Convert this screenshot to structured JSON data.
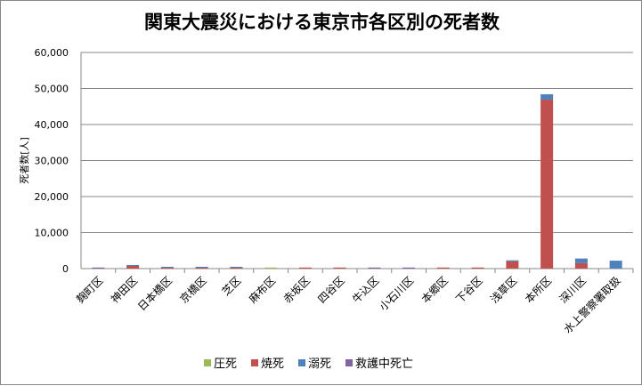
{
  "chart_data": {
    "type": "bar",
    "stacked": true,
    "title": "関東大震災における東京市各区別の死者数",
    "xlabel": "",
    "ylabel": "死者数[人]",
    "ylim": [
      0,
      60000
    ],
    "yticks": [
      "0",
      "10,000",
      "20,000",
      "30,000",
      "40,000",
      "50,000",
      "60,000"
    ],
    "grid": true,
    "legend_position": "bottom",
    "categories": [
      "麹町区",
      "神田区",
      "日本橋区",
      "京橋区",
      "芝区",
      "麻布区",
      "赤坂区",
      "四谷区",
      "牛込区",
      "小石川区",
      "本郷区",
      "下谷区",
      "浅草区",
      "本所区",
      "深川区",
      "水上警察署取扱"
    ],
    "series": [
      {
        "name": "圧死",
        "color": "#9bbb59",
        "values": [
          0,
          0,
          0,
          0,
          0,
          300,
          0,
          0,
          0,
          0,
          0,
          0,
          0,
          0,
          0,
          0
        ]
      },
      {
        "name": "焼死",
        "color": "#c0504d",
        "values": [
          0,
          850,
          300,
          300,
          400,
          0,
          300,
          300,
          0,
          0,
          300,
          300,
          2000,
          46900,
          1500,
          0
        ]
      },
      {
        "name": "溺死",
        "color": "#4f81bd",
        "values": [
          0,
          150,
          200,
          200,
          100,
          0,
          0,
          0,
          0,
          0,
          0,
          0,
          300,
          1500,
          1300,
          2200
        ]
      },
      {
        "name": "救護中死亡",
        "color": "#8064a2",
        "values": [
          300,
          0,
          0,
          0,
          0,
          0,
          0,
          0,
          300,
          300,
          0,
          0,
          0,
          0,
          0,
          0
        ]
      }
    ]
  }
}
